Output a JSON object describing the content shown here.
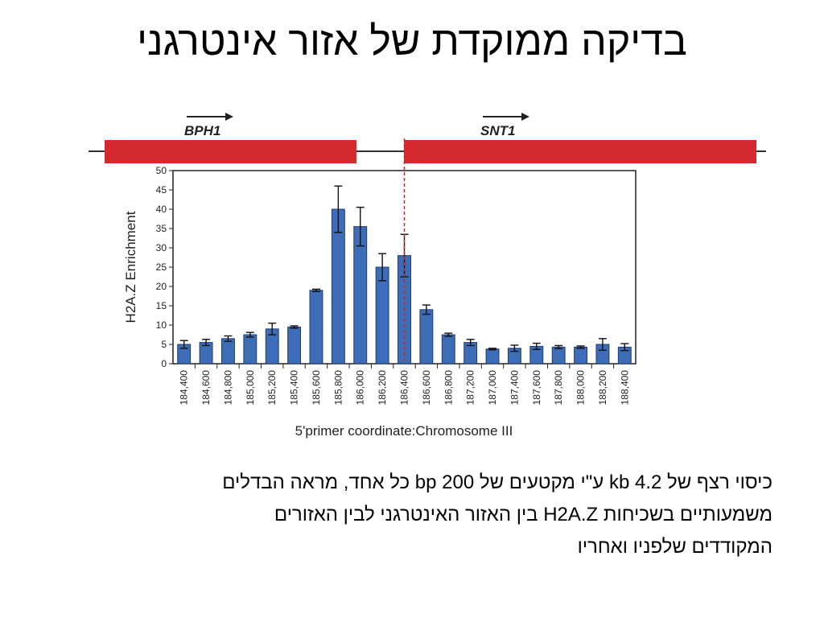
{
  "title": "בדיקה ממוקדת של אזור אינטרגני",
  "caption": {
    "line1": "כיסוי רצף של 4.2 kb ע\"י מקטעים של 200 bp כל אחד, מראה הבדלים",
    "line2": "משמעותיים בשכיחות H2A.Z בין האזור האינטרגני לבין האזורים",
    "line3": "המקודדים שלפניו ואחריו"
  },
  "colors": {
    "gene": "#d42a2f",
    "bar": "#3e6db7",
    "bar_edge": "#1f3a70",
    "marker": "#cc2222"
  },
  "chart_data": {
    "type": "bar",
    "categories": [
      "184,400",
      "184,600",
      "184,800",
      "185,000",
      "185,200",
      "185,400",
      "185,600",
      "185,800",
      "186,000",
      "186,200",
      "186,400",
      "186,600",
      "186,800",
      "187,200",
      "187,000",
      "187,400",
      "187,600",
      "187,800",
      "188,000",
      "188,200",
      "188,400"
    ],
    "values": [
      5,
      5.5,
      6.5,
      7.5,
      9,
      9.5,
      19,
      40,
      35.5,
      25,
      28,
      14,
      7.5,
      5.5,
      3.8,
      4,
      4.5,
      4.3,
      4.3,
      5,
      4.3
    ],
    "errors": [
      1,
      0.8,
      0.7,
      0.6,
      1.5,
      0.3,
      0.3,
      6,
      5,
      3.5,
      5.5,
      1.2,
      0.4,
      0.8,
      0.2,
      0.8,
      0.8,
      0.4,
      0.3,
      1.5,
      0.9
    ],
    "ylabel": "H2A.Z Enrichment",
    "xlabel": "5'primer coordinate:Chromosome III",
    "ylim": [
      0,
      50
    ],
    "yticks": [
      0,
      5,
      10,
      15,
      20,
      25,
      30,
      35,
      40,
      45,
      50
    ],
    "genes": [
      {
        "name": "BPH1",
        "from": 184400,
        "to": 186000
      },
      {
        "name": "SNT1",
        "from": 186400,
        "to": 188400
      }
    ],
    "boundary_category": "186,400"
  }
}
